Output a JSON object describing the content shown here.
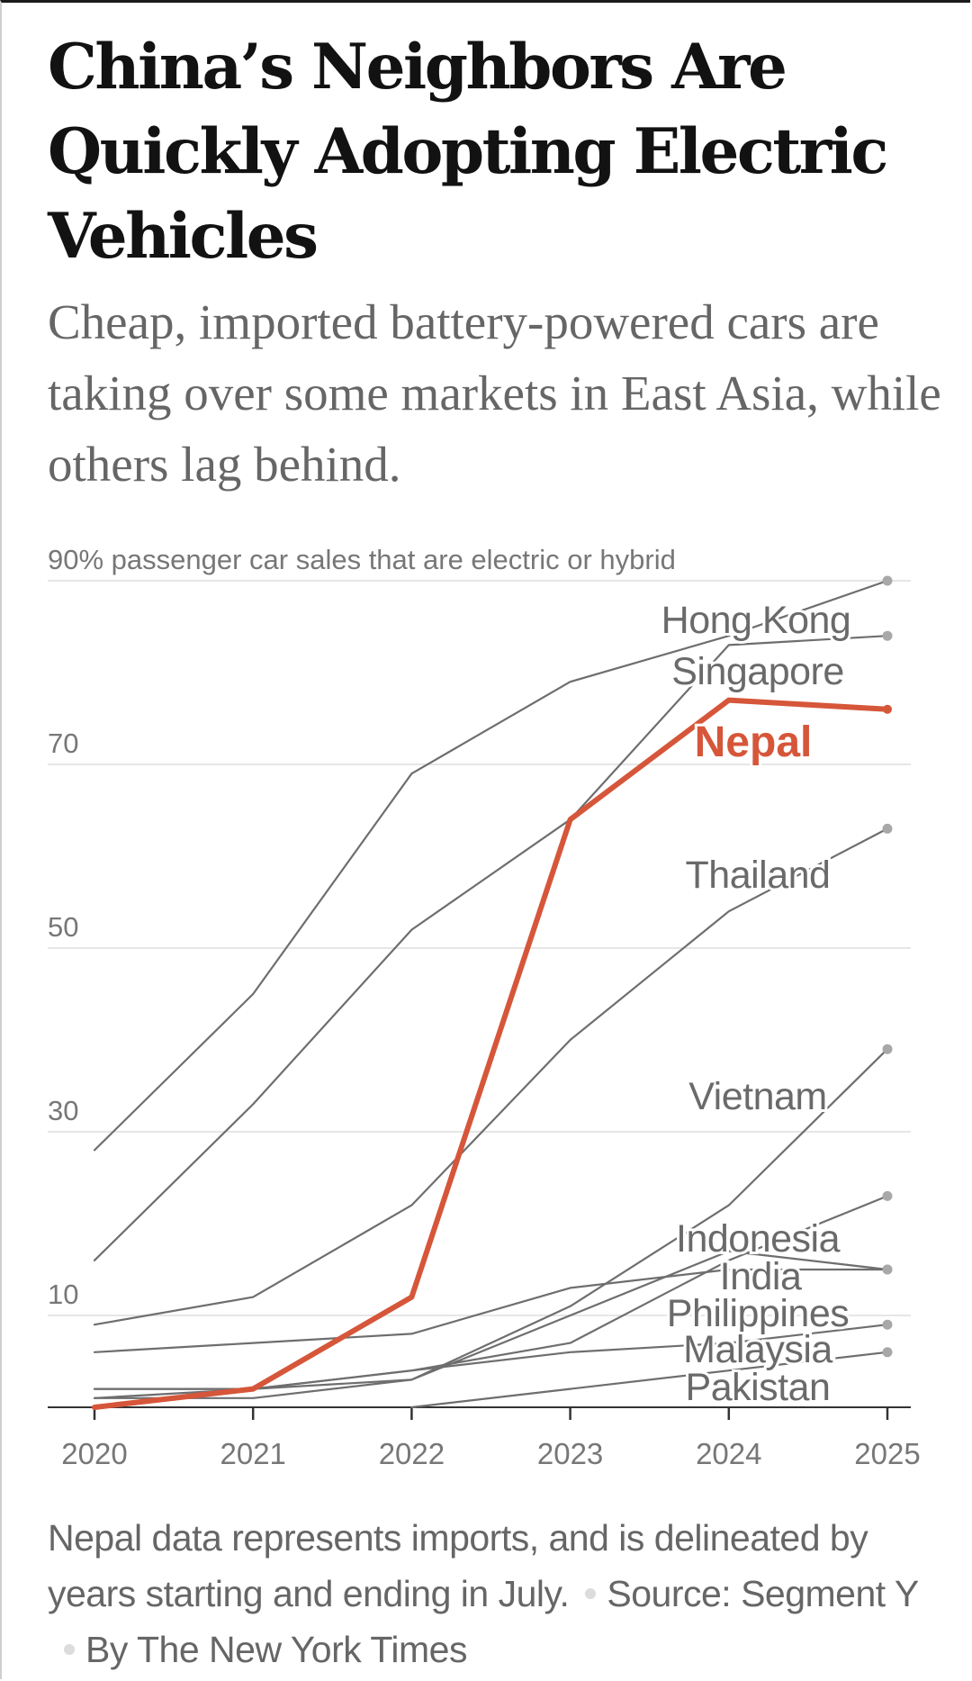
{
  "header": {
    "title": "China’s Neighbors Are Quickly Adopting Electric Vehicles",
    "subtitle": "Cheap, imported battery-powered cars are taking over some markets in East Asia, while others lag behind."
  },
  "footer": {
    "note": "Nepal data represents imports, and is delineated by years starting and ending in July.",
    "source_label": "Source: Segment Y",
    "byline": "By The New York Times"
  },
  "colors": {
    "highlight": "#D6563A",
    "series": "#6e6e6e",
    "grid": "#e6e6e6",
    "axis": "#333333",
    "text_muted": "#777777"
  },
  "chart_data": {
    "type": "line",
    "title": "",
    "ylabel": "% passenger car sales that are electric or hybrid",
    "xlabel": "",
    "x": [
      2020,
      2021,
      2022,
      2023,
      2024,
      2025
    ],
    "x_tick_labels": [
      "2020",
      "2021",
      "2022",
      "2023",
      "2024",
      "2025"
    ],
    "y_ticks": [
      10,
      30,
      50,
      70,
      90
    ],
    "y_tick_labels": [
      "10",
      "30",
      "50",
      "70",
      "90%"
    ],
    "ylim": [
      0,
      90
    ],
    "grid": true,
    "legend": "direct labels at right end of lines",
    "highlight_series": "Nepal",
    "series": [
      {
        "name": "Hong Kong",
        "values": [
          28,
          45,
          69,
          79,
          84,
          90
        ]
      },
      {
        "name": "Singapore",
        "values": [
          16,
          33,
          52,
          64,
          83,
          84
        ]
      },
      {
        "name": "Nepal",
        "values": [
          0,
          2,
          12,
          64,
          77,
          76
        ]
      },
      {
        "name": "Thailand",
        "values": [
          9,
          12,
          22,
          40,
          54,
          63
        ]
      },
      {
        "name": "Vietnam",
        "values": [
          2,
          2,
          3,
          11,
          22,
          39
        ]
      },
      {
        "name": "Indonesia",
        "values": [
          1,
          2,
          4,
          7,
          16,
          23
        ]
      },
      {
        "name": "India",
        "values": [
          6,
          7,
          8,
          13,
          15,
          15
        ]
      },
      {
        "name": "Philippines",
        "values": [
          1,
          1,
          3,
          10,
          17,
          15
        ]
      },
      {
        "name": "Malaysia",
        "values": [
          2,
          2,
          4,
          6,
          7,
          9
        ]
      },
      {
        "name": "Pakistan",
        "values": [
          null,
          null,
          0,
          2,
          4,
          6
        ]
      }
    ]
  }
}
